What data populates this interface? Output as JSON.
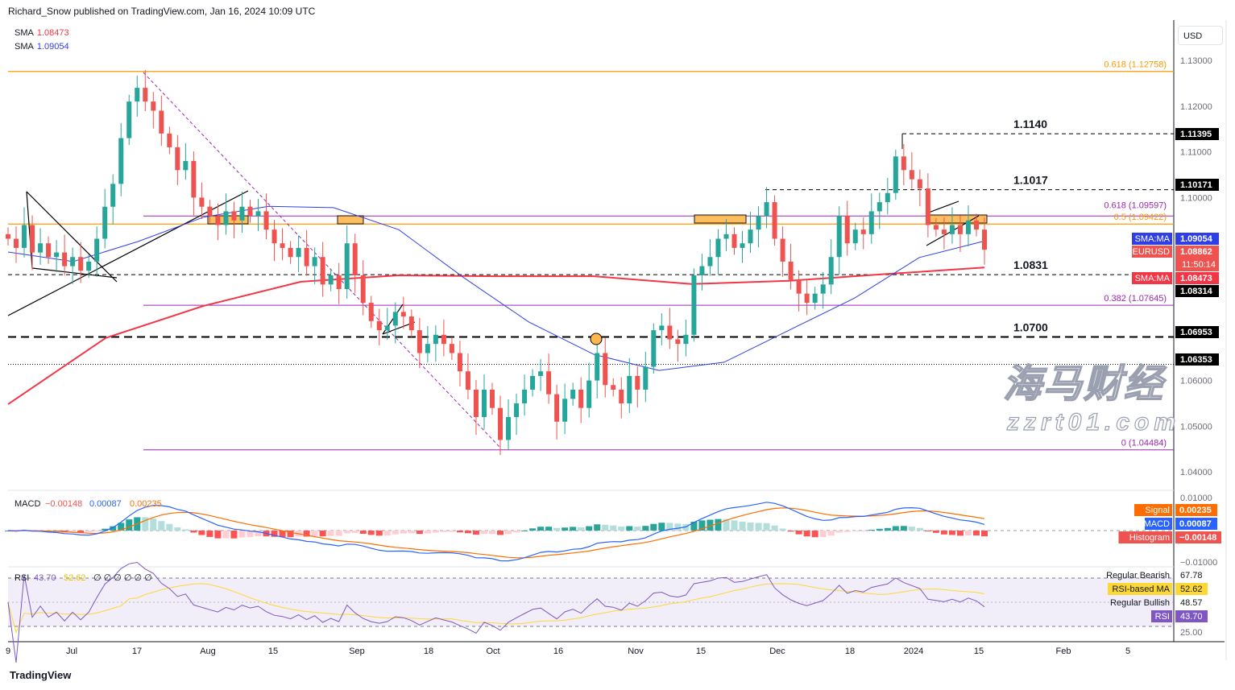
{
  "header": {
    "publisher": "Richard_Snow published on TradingView.com, Jan 16, 2024 10:09 UTC"
  },
  "legend": {
    "sma1_label": "SMA",
    "sma1_value": "1.08473",
    "sma2_label": "SMA",
    "sma2_value": "1.09054"
  },
  "currency_button": "USD",
  "footer": {
    "logo": "TradingView"
  },
  "watermark": {
    "line1": "海马财经",
    "line2": "zzrt01.com"
  },
  "colors": {
    "up": "#26a69a",
    "down": "#ef5350",
    "sma50": "#2f3fe8",
    "sma200": "#f23645",
    "fib_purple": "#9c27b0",
    "fib_orange": "#ff9800",
    "macd": "#2962ff",
    "signal": "#ff6d00",
    "rsi": "#7e57c2",
    "rsi_ma": "#fdd835"
  },
  "price_axis": {
    "ticks": [
      "1.13000",
      "1.12000",
      "1.11000",
      "1.10000",
      "1.06000",
      "1.05000",
      "1.04000"
    ]
  },
  "time_axis": {
    "ticks": [
      "9",
      "Jul",
      "17",
      "Aug",
      "15",
      "Sep",
      "18",
      "Oct",
      "16",
      "Nov",
      "15",
      "Dec",
      "18",
      "2024",
      "15",
      "Feb",
      "5"
    ]
  },
  "level_labels": [
    {
      "text": "1.1140",
      "price": 1.11395
    },
    {
      "text": "1.1017",
      "price": 1.10171
    },
    {
      "text": "1.0831",
      "price": 1.08314
    },
    {
      "text": "1.0700",
      "price": 1.06953
    }
  ],
  "fib_labels": [
    {
      "text": "0.618 (1.12758)",
      "price": 1.12758,
      "color": "#ff9800"
    },
    {
      "text": "0.618 (1.09597)",
      "price": 1.09597,
      "color": "#9c27b0"
    },
    {
      "text": "0.5 (1.09422)",
      "price": 1.09422,
      "color": "#ff9800"
    },
    {
      "text": "0.382 (1.07645)",
      "price": 1.07645,
      "color": "#9c27b0"
    },
    {
      "text": "0 (1.04484)",
      "price": 1.04484,
      "color": "#9c27b0"
    }
  ],
  "price_tags": [
    {
      "name": "SMA:MA",
      "value": "1.09054",
      "price": 1.09054,
      "bg": "#2f3fe8"
    },
    {
      "name": "EURUSD",
      "value": "1.08862",
      "sub": "11:50:14",
      "price": 1.08862,
      "bg": "#ef5350"
    },
    {
      "name": "SMA:MA",
      "value": "1.08473",
      "price": 1.08473,
      "bg": "#f23645"
    },
    {
      "name": "",
      "value": "1.11395",
      "price": 1.11395,
      "bg": "#000000"
    },
    {
      "name": "",
      "value": "1.10171",
      "price": 1.10171,
      "bg": "#000000"
    },
    {
      "name": "",
      "value": "1.08314",
      "price": 1.08314,
      "bg": "#000000"
    },
    {
      "name": "",
      "value": "1.06953",
      "price": 1.06953,
      "bg": "#000000"
    },
    {
      "name": "",
      "value": "1.06353",
      "price": 1.06353,
      "bg": "#000000"
    }
  ],
  "macd": {
    "title": "MACD",
    "hist": "−0.00148",
    "macd": "0.00087",
    "signal": "0.00235",
    "axis": [
      "0.01000",
      "−0.01000"
    ],
    "tags": [
      {
        "name": "Signal",
        "value": "0.00235",
        "bg": "#ff6d00"
      },
      {
        "name": "MACD",
        "value": "0.00087",
        "bg": "#2962ff"
      },
      {
        "name": "Histogram",
        "value": "−0.00148",
        "bg": "#ef5350"
      }
    ]
  },
  "rsi": {
    "title": "RSI",
    "value": "43.70",
    "ma": "52.62",
    "extras": "∅ ∅ ∅ ∅ ∅ ∅",
    "axis": "25.00",
    "tags": [
      {
        "name": "Regular Bearish",
        "value": "67.78",
        "bg": ""
      },
      {
        "name": "RSI-based MA",
        "value": "52.62",
        "bg": "#fdd835"
      },
      {
        "name": "Regular Bullish",
        "value": "48.57",
        "bg": ""
      },
      {
        "name": "RSI",
        "value": "43.70",
        "bg": "#7e57c2"
      }
    ]
  },
  "chart_data": {
    "type": "candlestick",
    "symbol": "EURUSD",
    "ylim": [
      1.04,
      1.13
    ],
    "closes": [
      1.091,
      1.089,
      1.094,
      1.088,
      1.09,
      1.087,
      1.088,
      1.085,
      1.087,
      1.084,
      1.086,
      1.091,
      1.098,
      1.103,
      1.113,
      1.121,
      1.124,
      1.121,
      1.119,
      1.114,
      1.111,
      1.106,
      1.108,
      1.1,
      1.098,
      1.096,
      1.094,
      1.097,
      1.095,
      1.098,
      1.096,
      1.097,
      1.093,
      1.09,
      1.089,
      1.087,
      1.089,
      1.085,
      1.087,
      1.081,
      1.083,
      1.08,
      1.09,
      1.083,
      1.077,
      1.073,
      1.071,
      1.072,
      1.075,
      1.074,
      1.071,
      1.066,
      1.068,
      1.07,
      1.068,
      1.066,
      1.062,
      1.058,
      1.052,
      1.058,
      1.054,
      1.047,
      1.052,
      1.055,
      1.058,
      1.061,
      1.062,
      1.057,
      1.051,
      1.056,
      1.058,
      1.054,
      1.06,
      1.066,
      1.059,
      1.058,
      1.055,
      1.061,
      1.058,
      1.063,
      1.071,
      1.072,
      1.069,
      1.068,
      1.07,
      1.083,
      1.085,
      1.087,
      1.091,
      1.092,
      1.089,
      1.09,
      1.093,
      1.096,
      1.099,
      1.091,
      1.086,
      1.082,
      1.079,
      1.077,
      1.079,
      1.081,
      1.087,
      1.096,
      1.09,
      1.093,
      1.092,
      1.097,
      1.099,
      1.101,
      1.109,
      1.106,
      1.104,
      1.102,
      1.094,
      1.093,
      1.092,
      1.094,
      1.092,
      1.095,
      1.093,
      1.0886
    ],
    "series": [
      {
        "name": "SMA",
        "value_label": "1.09054",
        "values": [
          1.0881,
          1.086,
          1.0904,
          1.0957,
          1.0981,
          1.0978,
          1.093,
          1.0825,
          1.0728,
          1.0657,
          1.0622,
          1.064,
          1.071,
          1.078,
          1.0869,
          1.0905
        ]
      },
      {
        "name": "SMA",
        "value_label": "1.08473",
        "values": [
          1.0548,
          1.0693,
          1.0763,
          1.0816,
          1.083,
          1.0828,
          1.0828,
          1.0811,
          1.0818,
          1.0833,
          1.0847
        ]
      }
    ]
  }
}
